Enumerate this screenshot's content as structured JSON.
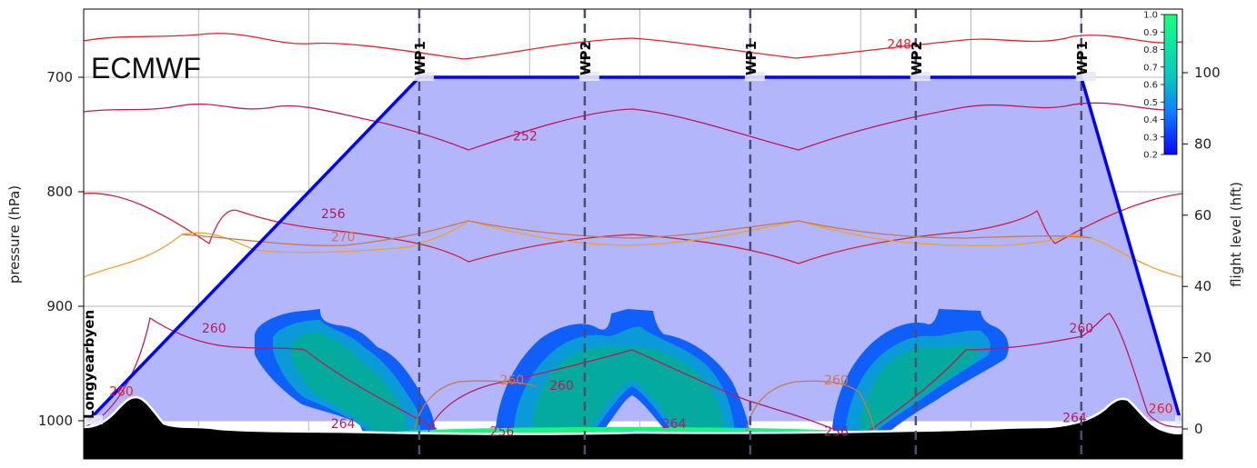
{
  "chart_data": {
    "type": "area",
    "title": "",
    "model_label": "ECMWF",
    "y_left": {
      "label": "pressure (hPa)",
      "ticks": [
        700,
        800,
        900,
        1000
      ],
      "range": [
        1040,
        650
      ]
    },
    "y_right": {
      "label": "flight level (hft)",
      "ticks": [
        0,
        20,
        40,
        60,
        80,
        100
      ]
    },
    "colorbar": {
      "ticks": [
        "1.0",
        "0.9",
        "0.8",
        "0.7",
        "0.6",
        "0.5",
        "0.4",
        "0.3",
        "0.2"
      ],
      "colors": [
        "#0a05ff",
        "#0d7dff",
        "#08c6c0",
        "#0ee9a0",
        "#19ff7e"
      ]
    },
    "waypoints": [
      {
        "name": "Longyearbyen",
        "x": 0.0,
        "pressure": 1000
      },
      {
        "name": "WP1",
        "x": 1.0,
        "pressure": 700
      },
      {
        "name": "WP2",
        "x": 1.5,
        "pressure": 700
      },
      {
        "name": "WP1",
        "x": 2.0,
        "pressure": 700
      },
      {
        "name": "WP2",
        "x": 2.5,
        "pressure": 700
      },
      {
        "name": "WP1",
        "x": 3.0,
        "pressure": 700
      },
      {
        "name": "",
        "x": 3.3,
        "pressure": 1000
      }
    ],
    "x_range": [
      0,
      3.3
    ],
    "contour_labels": [
      {
        "text": "248",
        "x": 2.45,
        "pressure": 672,
        "color": "#e8202a"
      },
      {
        "text": "252",
        "x": 1.32,
        "pressure": 752,
        "color": "#c0185a"
      },
      {
        "text": "256",
        "x": 0.74,
        "pressure": 820,
        "color": "#b0185a"
      },
      {
        "text": "270",
        "x": 0.77,
        "pressure": 840,
        "color": "#c87850"
      },
      {
        "text": "260",
        "x": 0.38,
        "pressure": 920,
        "color": "#c0185a"
      },
      {
        "text": "260",
        "x": 3.0,
        "pressure": 920,
        "color": "#c0185a"
      },
      {
        "text": "260",
        "x": 0.1,
        "pressure": 975,
        "color": "#e8202a"
      },
      {
        "text": "260",
        "x": 1.28,
        "pressure": 965,
        "color": "#c87850"
      },
      {
        "text": "260",
        "x": 1.43,
        "pressure": 970,
        "color": "#c0185a"
      },
      {
        "text": "260",
        "x": 2.26,
        "pressure": 965,
        "color": "#c87850"
      },
      {
        "text": "264",
        "x": 0.77,
        "pressure": 1003,
        "color": "#c0185a"
      },
      {
        "text": "264",
        "x": 1.77,
        "pressure": 1003,
        "color": "#c0185a"
      },
      {
        "text": "264",
        "x": 2.98,
        "pressure": 998,
        "color": "#c0185a"
      },
      {
        "text": "260",
        "x": 3.24,
        "pressure": 990,
        "color": "#e8202a"
      },
      {
        "text": "256",
        "x": 1.25,
        "pressure": 1010,
        "color": "#c0185a"
      },
      {
        "text": "256",
        "x": 2.26,
        "pressure": 1010,
        "color": "#c0185a"
      }
    ]
  }
}
